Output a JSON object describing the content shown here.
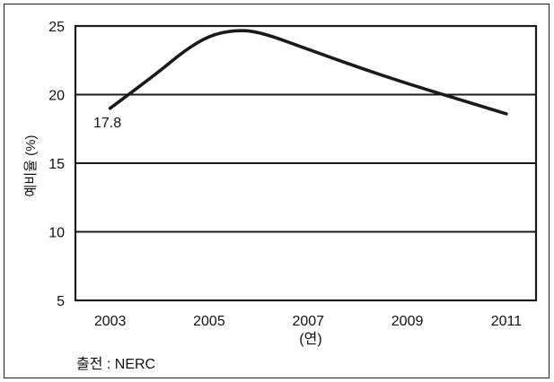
{
  "chart_data": {
    "type": "line",
    "x": [
      2003,
      2004,
      2004.5,
      2005,
      2005.5,
      2006,
      2007,
      2008,
      2009,
      2010,
      2011
    ],
    "series": [
      {
        "values": [
          19.0,
          21.7,
          23.2,
          24.3,
          24.7,
          24.6,
          23.3,
          22.0,
          20.8,
          19.7,
          18.6
        ]
      }
    ],
    "x_ticks": [
      "2003",
      "2005",
      "2007",
      "2009",
      "2011"
    ],
    "y_ticks": [
      "25",
      "20",
      "15",
      "10",
      "5"
    ],
    "xlim": [
      2002.3,
      2011.6
    ],
    "ylim": [
      5,
      25
    ],
    "xlabel": "(연)",
    "ylabel": "예비율 (%)",
    "annotation": "17.8",
    "source": "출전 : NERC",
    "grid": "horizontal",
    "colors": {
      "line": "#1a1a1a",
      "grid": "#1a1a1a",
      "frame": "#222222"
    }
  }
}
